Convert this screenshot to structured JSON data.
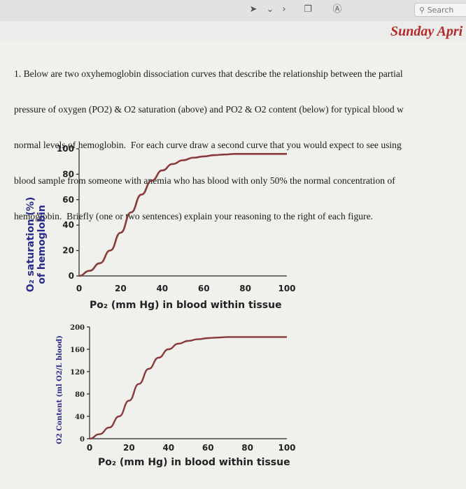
{
  "app": {
    "search_placeholder": "Search",
    "date": "Sunday Apri"
  },
  "question": {
    "lines": [
      "1. Below are two oxyhemoglobin dissociation curves that describe the relationship between the partial",
      "pressure of oxygen (PO2) & O2 saturation (above) and PO2 & O2 content (below) for typical blood w",
      "normal levels of hemoglobin.  For each curve draw a second curve that you would expect to see using",
      "blood sample from someone with anemia who has blood with only 50% the normal concentration of",
      "hemoglobin.  Briefly (one or two sentences) explain your reasoning to the right of each figure."
    ]
  },
  "chart_data": [
    {
      "type": "line",
      "ylabel_line1": "O₂ saturation (%)",
      "ylabel_line2": "of hemoglobin",
      "xlabel": "Po₂ (mm Hg) in blood within tissue",
      "xlim": [
        0,
        100
      ],
      "ylim": [
        0,
        100
      ],
      "xticks": [
        "0",
        "20",
        "40",
        "60",
        "80",
        "100"
      ],
      "yticks": [
        "0",
        "20",
        "40",
        "60",
        "80",
        "100"
      ],
      "curve_color": "#8a3a3a",
      "x": [
        0,
        5,
        10,
        15,
        20,
        25,
        30,
        35,
        40,
        45,
        50,
        55,
        60,
        65,
        70,
        75,
        80,
        85,
        90,
        95,
        100
      ],
      "y": [
        0,
        4,
        10,
        20,
        34,
        50,
        64,
        75,
        83,
        88,
        91,
        93,
        94,
        95,
        95.5,
        96,
        96,
        96,
        96,
        96,
        96
      ]
    },
    {
      "type": "line",
      "ylabel": "O2 Content (ml O2/L blood)",
      "xlabel": "Po₂ (mm Hg) in blood within tissue",
      "xlim": [
        0,
        100
      ],
      "ylim": [
        0,
        200
      ],
      "xticks": [
        "0",
        "20",
        "40",
        "60",
        "80",
        "100"
      ],
      "yticks": [
        "0",
        "40",
        "80",
        "120",
        "160",
        "200"
      ],
      "curve_color": "#8a3a3a",
      "x": [
        0,
        5,
        10,
        15,
        20,
        25,
        30,
        35,
        40,
        45,
        50,
        55,
        60,
        65,
        70,
        75,
        80,
        85,
        90,
        95,
        100
      ],
      "y": [
        0,
        8,
        20,
        40,
        68,
        98,
        125,
        145,
        160,
        170,
        175,
        178,
        180,
        181,
        182,
        182,
        182,
        182,
        182,
        182,
        182
      ]
    }
  ]
}
